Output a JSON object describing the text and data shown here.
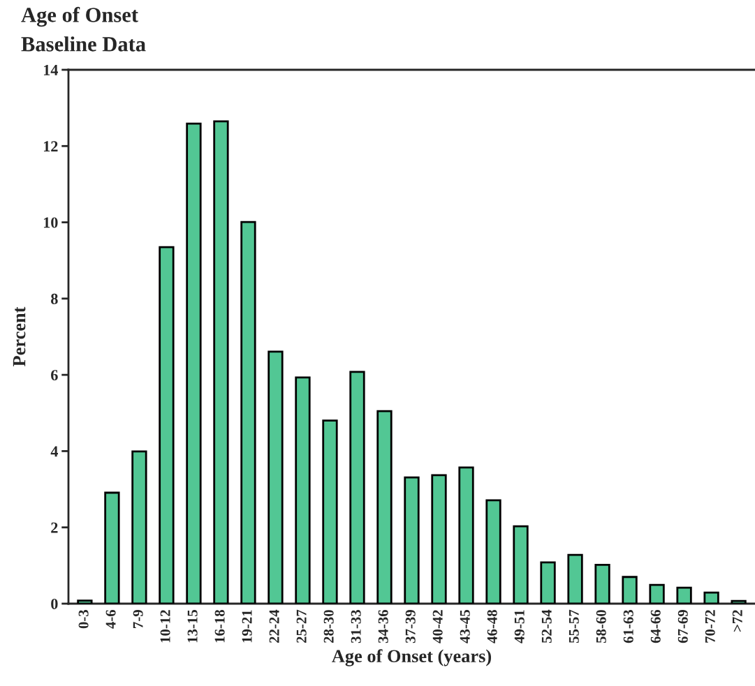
{
  "chart_data": {
    "type": "bar",
    "title": "Age of Onset",
    "subtitle": "Baseline Data",
    "xlabel": "Age of Onset (years)",
    "ylabel": "Percent",
    "categories": [
      "0-3",
      "4-6",
      "7-9",
      "10-12",
      "13-15",
      "16-18",
      "19-21",
      "22-24",
      "25-27",
      "28-30",
      "31-33",
      "34-36",
      "37-39",
      "40-42",
      "43-45",
      "46-48",
      "49-51",
      "52-54",
      "55-57",
      "58-60",
      "61-63",
      "64-66",
      "67-69",
      "70-72",
      ">72"
    ],
    "values": [
      0.08,
      2.91,
      3.99,
      9.35,
      12.59,
      12.65,
      10.01,
      6.61,
      5.93,
      4.8,
      6.08,
      5.05,
      3.31,
      3.37,
      3.57,
      2.71,
      2.03,
      1.08,
      1.28,
      1.02,
      0.7,
      0.49,
      0.42,
      0.29,
      0.07
    ],
    "color": "#52c794",
    "ylim": [
      0,
      14
    ],
    "yticks": [
      0,
      2,
      4,
      6,
      8,
      10,
      12,
      14
    ],
    "grid": false,
    "legend": false
  }
}
